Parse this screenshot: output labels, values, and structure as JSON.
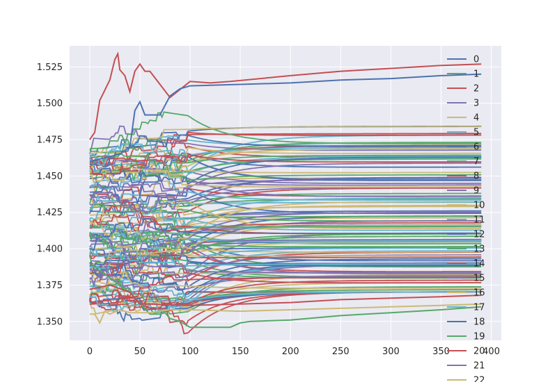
{
  "chart_data": {
    "type": "line",
    "title": "",
    "xlabel": "",
    "ylabel": "",
    "xlim": [
      -20,
      410
    ],
    "ylim": [
      1.337,
      1.5395
    ],
    "xticks": [
      0,
      50,
      100,
      150,
      200,
      250,
      300,
      350,
      400
    ],
    "xtick_labels": [
      "0",
      "50",
      "100",
      "150",
      "200",
      "250",
      "300",
      "350",
      "400"
    ],
    "yticks": [
      1.35,
      1.375,
      1.4,
      1.425,
      1.45,
      1.475,
      1.5,
      1.525
    ],
    "ytick_labels": [
      "1.350",
      "1.375",
      "1.400",
      "1.425",
      "1.450",
      "1.475",
      "1.500",
      "1.525"
    ],
    "grid": true,
    "legend_position": "right",
    "n_points": 391,
    "palette": [
      "#4C72B0",
      "#55A868",
      "#C44E52",
      "#8172B2",
      "#CCB974",
      "#64B5CD"
    ],
    "highlight_series": [
      {
        "name": "20",
        "color": "#C44E52",
        "x": [
          0,
          5,
          10,
          15,
          20,
          25,
          28,
          30,
          35,
          40,
          45,
          50,
          55,
          60,
          80,
          100,
          120,
          140,
          200,
          250,
          300,
          350,
          390
        ],
        "y": [
          1.475,
          1.48,
          1.502,
          1.509,
          1.516,
          1.53,
          1.534,
          1.523,
          1.519,
          1.508,
          1.522,
          1.527,
          1.522,
          1.522,
          1.504,
          1.515,
          1.514,
          1.515,
          1.519,
          1.522,
          1.524,
          1.526,
          1.527
        ]
      },
      {
        "name": "18",
        "color": "#4C72B0",
        "x": [
          0,
          30,
          40,
          45,
          50,
          55,
          70,
          80,
          90,
          100,
          150,
          200,
          250,
          300,
          350,
          390
        ],
        "y": [
          1.46,
          1.465,
          1.47,
          1.495,
          1.501,
          1.492,
          1.492,
          1.505,
          1.51,
          1.512,
          1.513,
          1.514,
          1.516,
          1.517,
          1.519,
          1.52
        ]
      },
      {
        "name": "19",
        "color": "#55A868",
        "x": [
          0,
          20,
          40,
          60,
          70,
          75,
          80,
          90,
          100,
          120,
          140,
          150,
          160,
          200,
          250,
          300,
          350,
          390
        ],
        "y": [
          1.39,
          1.38,
          1.37,
          1.355,
          1.355,
          1.356,
          1.352,
          1.35,
          1.346,
          1.346,
          1.346,
          1.349,
          1.35,
          1.351,
          1.354,
          1.356,
          1.358,
          1.36
        ]
      },
      {
        "name": "16",
        "color": "#CCB974",
        "x": [
          0,
          5,
          10,
          15,
          20,
          30,
          40,
          50,
          60,
          80,
          100,
          150,
          200,
          250,
          300,
          350,
          390
        ],
        "y": [
          1.355,
          1.355,
          1.349,
          1.357,
          1.355,
          1.358,
          1.356,
          1.356,
          1.356,
          1.358,
          1.358,
          1.357,
          1.358,
          1.359,
          1.36,
          1.361,
          1.362
        ]
      },
      {
        "name": "14",
        "color": "#C44E52",
        "x": [
          0,
          20,
          40,
          50,
          60,
          100,
          150,
          200,
          250,
          300,
          350,
          390
        ],
        "y": [
          1.372,
          1.375,
          1.37,
          1.362,
          1.362,
          1.361,
          1.362,
          1.363,
          1.365,
          1.366,
          1.367,
          1.368
        ]
      }
    ],
    "series": [
      {
        "name": "0"
      },
      {
        "name": "1"
      },
      {
        "name": "2"
      },
      {
        "name": "3"
      },
      {
        "name": "4"
      },
      {
        "name": "5"
      },
      {
        "name": "6"
      },
      {
        "name": "7"
      },
      {
        "name": "8"
      },
      {
        "name": "9"
      },
      {
        "name": "10"
      },
      {
        "name": "11"
      },
      {
        "name": "12"
      },
      {
        "name": "13"
      },
      {
        "name": "14"
      },
      {
        "name": "15"
      },
      {
        "name": "16"
      },
      {
        "name": "17"
      },
      {
        "name": "18"
      },
      {
        "name": "19"
      },
      {
        "name": "20"
      },
      {
        "name": "21"
      },
      {
        "name": "22"
      }
    ],
    "band_series": {
      "count": 120,
      "seed": 7,
      "start_range": [
        1.36,
        1.47
      ],
      "end_range": [
        1.37,
        1.505
      ]
    }
  }
}
